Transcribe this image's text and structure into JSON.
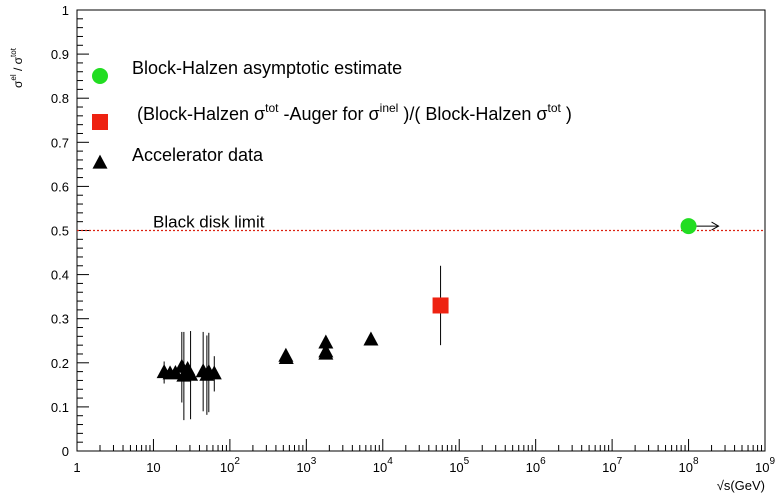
{
  "chart_data": {
    "type": "scatter",
    "title": "",
    "xlabel": "√s(GeV)",
    "ylabel": {
      "base": "σ",
      "sup1": "el",
      "sep": " / ",
      "base2": "σ",
      "sup2": "tot"
    },
    "xscale": "log",
    "xlim": [
      1,
      1000000000
    ],
    "ylim": [
      0,
      1
    ],
    "grid": false,
    "x_ticks": [
      {
        "base": "1",
        "exp": ""
      },
      {
        "base": "10",
        "exp": ""
      },
      {
        "base": "10",
        "exp": "2"
      },
      {
        "base": "10",
        "exp": "3"
      },
      {
        "base": "10",
        "exp": "4"
      },
      {
        "base": "10",
        "exp": "5"
      },
      {
        "base": "10",
        "exp": "6"
      },
      {
        "base": "10",
        "exp": "7"
      },
      {
        "base": "10",
        "exp": "8"
      },
      {
        "base": "10",
        "exp": "9"
      }
    ],
    "y_ticks": [
      "0",
      "0.1",
      "0.2",
      "0.3",
      "0.4",
      "0.5",
      "0.6",
      "0.7",
      "0.8",
      "0.9",
      "1"
    ],
    "legend": {
      "placement": "top-left",
      "entries": [
        {
          "marker": "circle",
          "color": "#22dd22",
          "text": "Block-Halzen asymptotic estimate"
        },
        {
          "marker": "square",
          "color": "#ee2211",
          "parts": [
            {
              "t": "(Block-Halzen σ",
              "sup": false
            },
            {
              "t": "tot",
              "sup": true
            },
            {
              "t": " -Auger for σ",
              "sup": false
            },
            {
              "t": "inel",
              "sup": true
            },
            {
              "t": " )/( Block-Halzen σ",
              "sup": false
            },
            {
              "t": "tot",
              "sup": true
            },
            {
              "t": " )",
              "sup": false
            }
          ]
        },
        {
          "marker": "triangle",
          "color": "#000000",
          "text": "Accelerator data"
        }
      ]
    },
    "reference_line": {
      "y": 0.5,
      "label": "Black disk limit",
      "color": "#dd2211",
      "style": "dotted"
    },
    "series": [
      {
        "marker": "triangle",
        "color": "#000000",
        "points": [
          {
            "x": 13.8,
            "y": 0.178,
            "err": 0.025
          },
          {
            "x": 16.5,
            "y": 0.175,
            "err": 0.0
          },
          {
            "x": 19.4,
            "y": 0.176,
            "err": 0.0
          },
          {
            "x": 23.5,
            "y": 0.19,
            "err": 0.08
          },
          {
            "x": 25.0,
            "y": 0.17,
            "err": 0.1
          },
          {
            "x": 28.0,
            "y": 0.185,
            "err": 0.0
          },
          {
            "x": 30.6,
            "y": 0.172,
            "err": 0.1
          },
          {
            "x": 44.7,
            "y": 0.18,
            "err": 0.09
          },
          {
            "x": 50.0,
            "y": 0.172,
            "err": 0.09
          },
          {
            "x": 53.0,
            "y": 0.178,
            "err": 0.09
          },
          {
            "x": 62.5,
            "y": 0.175,
            "err": 0.04
          },
          {
            "x": 540,
            "y": 0.215,
            "err": 0.0
          },
          {
            "x": 546,
            "y": 0.21,
            "err": 0.0
          },
          {
            "x": 1800,
            "y": 0.245,
            "err": 0.0
          },
          {
            "x": 1800,
            "y": 0.225,
            "err": 0.0
          },
          {
            "x": 1800,
            "y": 0.22,
            "err": 0.0
          },
          {
            "x": 7000,
            "y": 0.252,
            "err": 0.0
          }
        ]
      },
      {
        "marker": "square",
        "color": "#ee2211",
        "points": [
          {
            "x": 57000,
            "y": 0.33,
            "err": 0.09
          }
        ]
      },
      {
        "marker": "circle",
        "color": "#22dd22",
        "points": [
          {
            "x": 100000000,
            "y": 0.51,
            "err": 0.0,
            "arrow": "right"
          }
        ]
      }
    ]
  }
}
